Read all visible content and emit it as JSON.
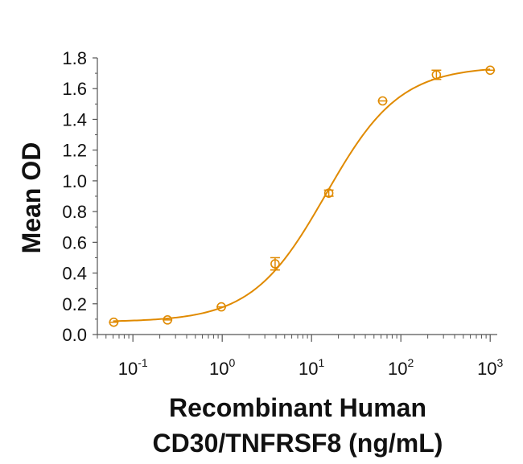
{
  "chart_data": {
    "type": "scatter",
    "title": "",
    "xlabel": [
      "Recombinant Human",
      "CD30/TNFRSF8 (ng/mL)"
    ],
    "ylabel": "Mean OD",
    "xscale": "log",
    "xlim": [
      0.04,
      1200
    ],
    "ylim": [
      0,
      1.8
    ],
    "yticks": [
      "0.0",
      "0.2",
      "0.4",
      "0.6",
      "0.8",
      "1.0",
      "1.2",
      "1.4",
      "1.6",
      "1.8"
    ],
    "xticks": [
      {
        "value": 0.1,
        "base": "10",
        "exp": "-1"
      },
      {
        "value": 1,
        "base": "10",
        "exp": "0"
      },
      {
        "value": 10,
        "base": "10",
        "exp": "1"
      },
      {
        "value": 100,
        "base": "10",
        "exp": "2"
      },
      {
        "value": 1000,
        "base": "10",
        "exp": "3"
      }
    ],
    "color": "#E08A00",
    "grid": false,
    "legend": "none",
    "points": [
      {
        "x": 0.061,
        "y": 0.08,
        "err": 0.0
      },
      {
        "x": 0.244,
        "y": 0.095,
        "err": 0.0
      },
      {
        "x": 0.977,
        "y": 0.18,
        "err": 0.0
      },
      {
        "x": 3.91,
        "y": 0.46,
        "err": 0.04
      },
      {
        "x": 15.6,
        "y": 0.92,
        "err": 0.02
      },
      {
        "x": 62.5,
        "y": 1.52,
        "err": 0.0
      },
      {
        "x": 250,
        "y": 1.69,
        "err": 0.03
      },
      {
        "x": 1000,
        "y": 1.72,
        "err": 0.0
      }
    ],
    "fit": {
      "model": "4PL",
      "bottom": 0.082,
      "top": 1.745,
      "ec50": 14.5,
      "hill": 1.05
    }
  }
}
